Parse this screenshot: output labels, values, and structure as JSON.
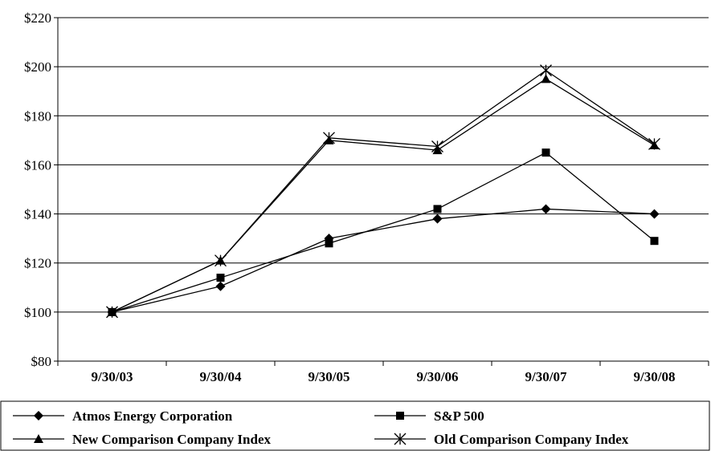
{
  "chart_data": {
    "type": "line",
    "categories": [
      "9/30/03",
      "9/30/04",
      "9/30/05",
      "9/30/06",
      "9/30/07",
      "9/30/08"
    ],
    "y_ticks": [
      "$80",
      "$100",
      "$120",
      "$140",
      "$160",
      "$180",
      "$200",
      "$220"
    ],
    "ylim": [
      80,
      220
    ],
    "y_tick_step": 20,
    "grid": "horizontal",
    "legend_position": "bottom",
    "series": [
      {
        "name": "Atmos Energy Corporation",
        "marker": "diamond",
        "values": [
          100,
          110.5,
          130,
          138,
          142,
          140
        ]
      },
      {
        "name": "S&P 500",
        "marker": "square",
        "values": [
          100,
          114,
          128,
          142,
          165,
          129
        ]
      },
      {
        "name": "New Comparison Company Index",
        "marker": "triangle",
        "values": [
          100,
          121,
          170,
          166,
          195,
          168
        ]
      },
      {
        "name": "Old Comparison Company Index",
        "marker": "asterisk",
        "values": [
          100,
          121,
          171,
          167.5,
          198.5,
          168.5
        ]
      }
    ]
  }
}
